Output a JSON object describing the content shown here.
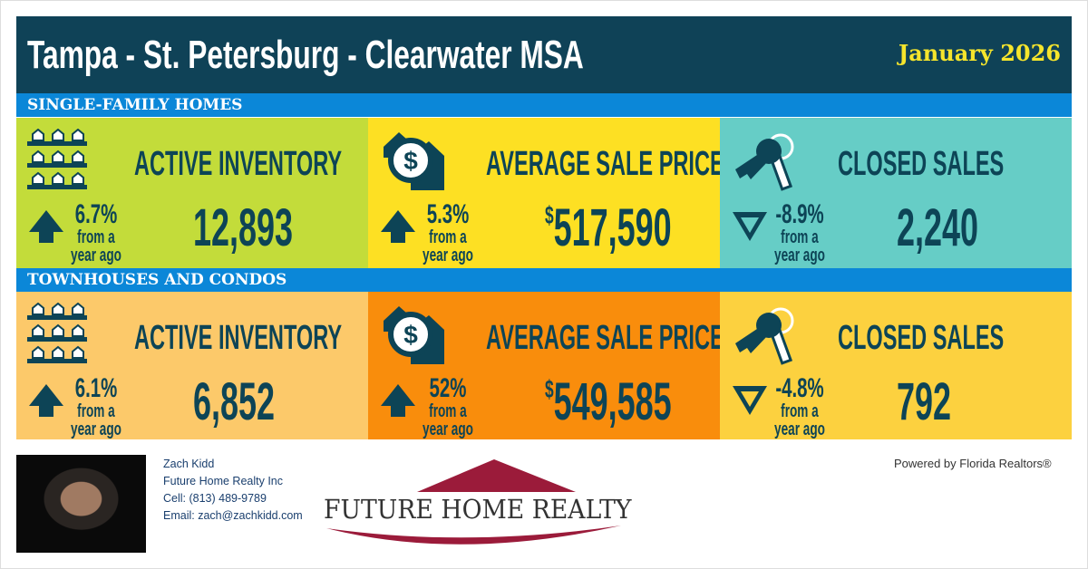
{
  "header": {
    "title": "Tampa - St. Petersburg - Clearwater MSA",
    "date": "January 2026"
  },
  "sections": [
    {
      "label": "SINGLE-FAMILY HOMES",
      "cells": [
        {
          "label": "ACTIVE INVENTORY",
          "value": "12,893",
          "change": "6.7%",
          "direction": "up",
          "icon": "houses-icon",
          "color": "#c3dc3a"
        },
        {
          "label": "AVERAGE SALE PRICE",
          "currency": "$",
          "value": "517,590",
          "change": "5.3%",
          "direction": "up",
          "icon": "house-dollar-icon",
          "color": "#fde023"
        },
        {
          "label": "CLOSED SALES",
          "value": "2,240",
          "change": "-8.9%",
          "direction": "down",
          "icon": "keys-icon",
          "color": "#66cdc6"
        }
      ]
    },
    {
      "label": "TOWNHOUSES AND CONDOS",
      "cells": [
        {
          "label": "ACTIVE INVENTORY",
          "value": "6,852",
          "change": "6.1%",
          "direction": "up",
          "icon": "houses-icon",
          "color": "#fcc96a"
        },
        {
          "label": "AVERAGE SALE PRICE",
          "currency": "$",
          "value": "549,585",
          "change": "52%",
          "direction": "up",
          "icon": "house-dollar-icon",
          "color": "#f98d0c"
        },
        {
          "label": "CLOSED SALES",
          "value": "792",
          "change": "-4.8%",
          "direction": "down",
          "icon": "keys-icon",
          "color": "#fcd13f"
        }
      ]
    }
  ],
  "change_suffix_1": "from a",
  "change_suffix_2": "year ago",
  "agent": {
    "name": "Zach Kidd",
    "company": "Future Home Realty Inc",
    "cell": "Cell: (813) 489-9789",
    "email": "Email: zach@zachkidd.com"
  },
  "logo": {
    "text": "FUTURE HOME REALTY"
  },
  "powered": "Powered by Florida Realtors®"
}
